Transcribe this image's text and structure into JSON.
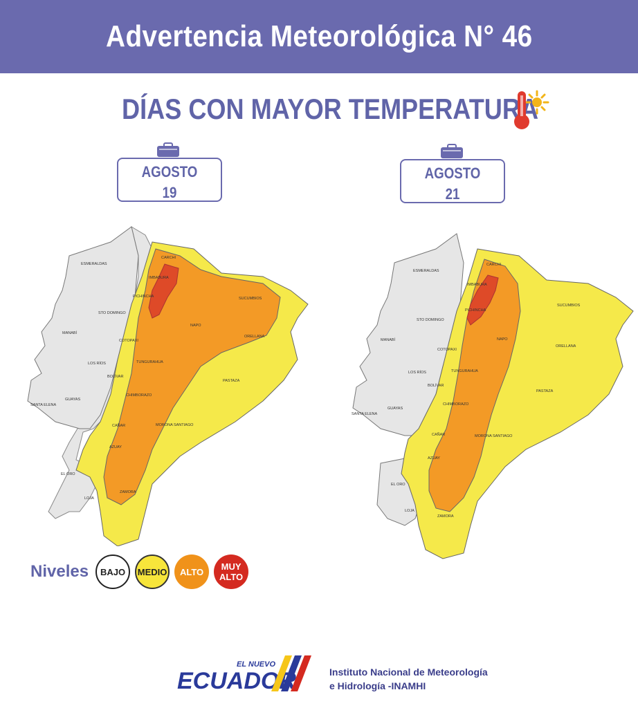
{
  "header": {
    "title": "Advertencia Meteorológica N° 46"
  },
  "subtitle": "DÍAS CON MAYOR TEMPERATURA",
  "dates": [
    {
      "month": "AGOSTO",
      "day": "19"
    },
    {
      "month": "AGOSTO",
      "day": "21"
    }
  ],
  "map_labels": {
    "carchi": "CARCHI",
    "esmeraldas": "ESMERALDAS",
    "imbabura": "IMBABURA",
    "sucumbios": "SUCUMBIOS",
    "pichincha": "PICHINCHA",
    "sto_domingo": "STO DOMINGO",
    "napo": "NAPO",
    "orellana": "ORELLANA",
    "manabi": "MANABÍ",
    "cotopaxi": "COTOPAXI",
    "tungurahua": "TUNGURAHUA",
    "los_rios": "LOS RÍOS",
    "bolivar": "BOLÍVAR",
    "pastaza": "PASTAZA",
    "chimborazo": "CHIMBORAZO",
    "santa_elena": "SANTA ELENA",
    "guayas": "GUAYAS",
    "canar": "CAÑAR",
    "morona": "MORONA SANTIAGO",
    "azuay": "AZUAY",
    "el_oro": "EL ORO",
    "loja": "LOJA",
    "zamora": "ZAMORA"
  },
  "legend": {
    "label": "Niveles",
    "levels": [
      {
        "name": "BAJO",
        "color": "#ffffff"
      },
      {
        "name": "MEDIO",
        "color": "#f7e53b"
      },
      {
        "name": "ALTO",
        "color": "#f0921a"
      },
      {
        "name": "MUY ALTO",
        "color": "#d42a20"
      }
    ]
  },
  "footer": {
    "logo_top": "EL NUEVO",
    "logo_main": "ECUADOR",
    "institution_line1": "Instituto Nacional de Meteorología",
    "institution_line2": "e Hidrología -INAMHI"
  },
  "colors": {
    "header_bg": "#6a6aae",
    "text_accent": "#6064a8",
    "bajo": "#e6e6e6",
    "medio": "#f5e94a",
    "alto": "#f39a26",
    "muy_alto": "#de4a28"
  }
}
